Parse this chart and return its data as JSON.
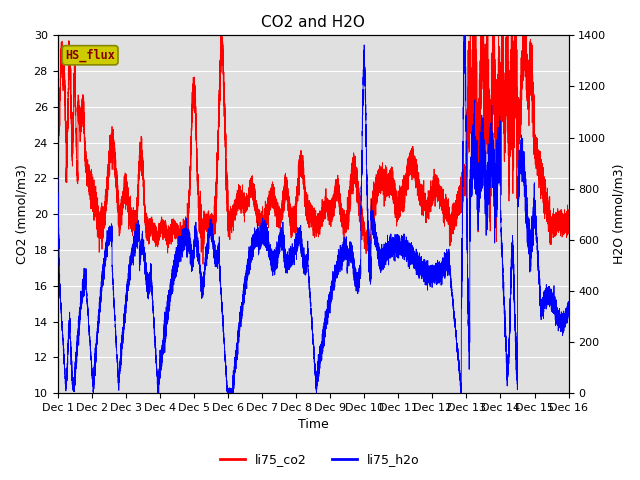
{
  "title": "CO2 and H2O",
  "xlabel": "Time",
  "ylabel_left": "CO2 (mmol/m3)",
  "ylabel_right": "H2O (mmol/m3)",
  "xlim": [
    0,
    15
  ],
  "ylim_left": [
    10,
    30
  ],
  "ylim_right": [
    0,
    1400
  ],
  "xtick_labels": [
    "Dec 1",
    "Dec 2",
    "Dec 3",
    "Dec 4",
    "Dec 5",
    "Dec 6",
    "Dec 7",
    "Dec 8",
    "Dec 9",
    "Dec 10",
    "Dec 11",
    "Dec 12",
    "Dec 13",
    "Dec 14",
    "Dec 15",
    "Dec 16"
  ],
  "yticks_left": [
    10,
    12,
    14,
    16,
    18,
    20,
    22,
    24,
    26,
    28,
    30
  ],
  "yticks_right": [
    0,
    200,
    400,
    600,
    800,
    1000,
    1200,
    1400
  ],
  "co2_color": "#ff0000",
  "h2o_color": "#0000ff",
  "bg_color": "#e0e0e0",
  "grid_color": "#ffffff",
  "legend_label": "HS_flux",
  "legend_box_color": "#cccc00",
  "legend_box_text_color": "#880000",
  "series1_label": "li75_co2",
  "series2_label": "li75_h2o",
  "title_fontsize": 11,
  "axis_fontsize": 9,
  "tick_fontsize": 8
}
